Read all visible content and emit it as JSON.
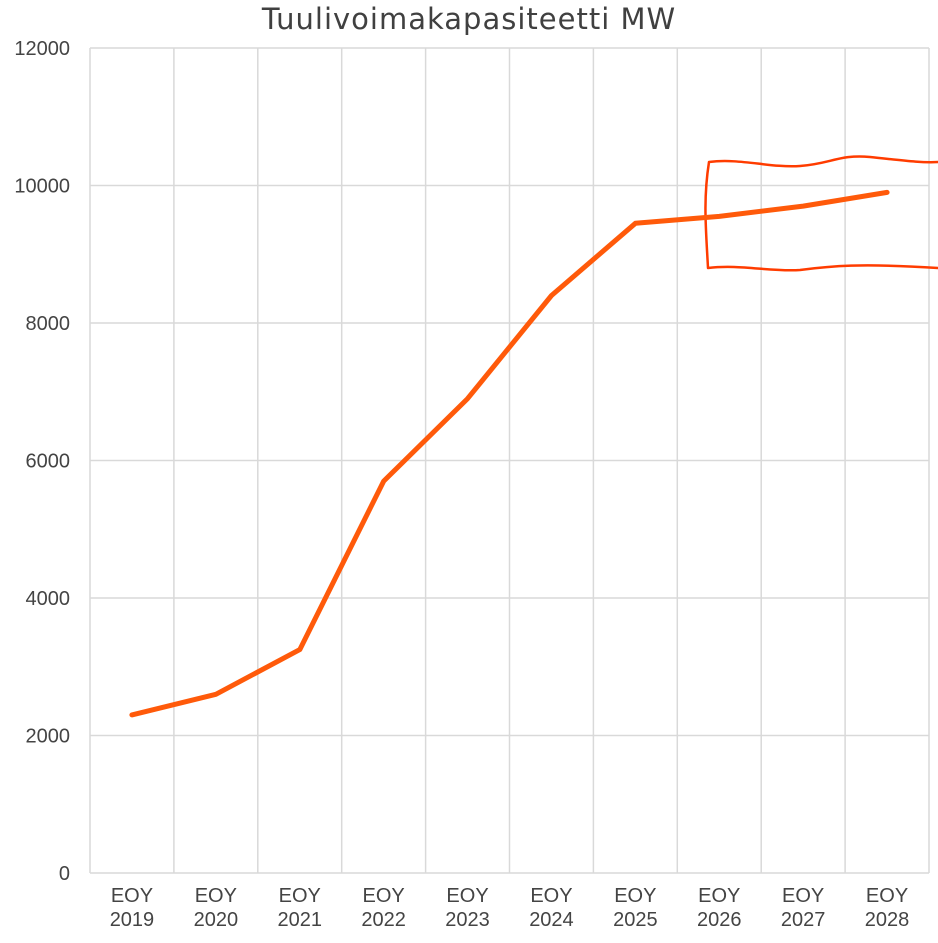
{
  "chart_data": {
    "type": "line",
    "title": "Tuulivoimakapasiteetti MW",
    "categories": [
      "EOY 2019",
      "EOY 2020",
      "EOY 2021",
      "EOY 2022",
      "EOY 2023",
      "EOY 2024",
      "EOY 2025",
      "EOY 2026",
      "EOY 2027",
      "EOY 2028"
    ],
    "series": [
      {
        "name": "Tuulivoimakapasiteetti MW",
        "color": "#ff5a0a",
        "values": [
          2300,
          2600,
          3250,
          5700,
          6900,
          8400,
          9450,
          9550,
          9700,
          9900
        ]
      }
    ],
    "ylim": [
      0,
      12000
    ],
    "yticks": [
      0,
      2000,
      4000,
      6000,
      8000,
      10000,
      12000
    ],
    "grid": true
  }
}
